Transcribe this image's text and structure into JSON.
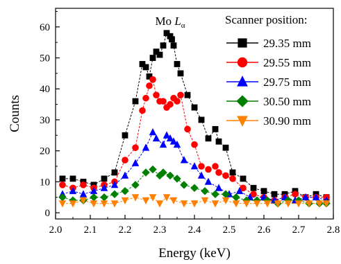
{
  "chart_data": {
    "type": "scatter",
    "xlabel": "Energy (keV)",
    "ylabel": "Counts",
    "xlim": [
      2.0,
      2.8
    ],
    "ylim": [
      -2,
      66
    ],
    "x_ticks": [
      2.0,
      2.1,
      2.2,
      2.3,
      2.4,
      2.5,
      2.6,
      2.7,
      2.8
    ],
    "x_tick_labels": [
      "2.0",
      "2.1",
      "2.2",
      "2.3",
      "2.4",
      "2.5",
      "2.6",
      "2.7",
      "2.8"
    ],
    "y_ticks": [
      0,
      10,
      20,
      30,
      40,
      50,
      60
    ],
    "y_tick_labels": [
      "0",
      "10",
      "20",
      "30",
      "40",
      "50",
      "60"
    ],
    "grid": false,
    "legend": {
      "title": "Scanner position:",
      "placement": "top-right"
    },
    "annotation": {
      "text": "Mo ",
      "symbol": "L",
      "subscript": "α",
      "x": 2.33
    },
    "series": [
      {
        "name": "29.35 mm",
        "marker": "square",
        "color": "#000000",
        "fill": "#000000",
        "x": [
          2.02,
          2.05,
          2.08,
          2.11,
          2.14,
          2.17,
          2.2,
          2.23,
          2.25,
          2.26,
          2.27,
          2.28,
          2.29,
          2.3,
          2.31,
          2.32,
          2.33,
          2.335,
          2.34,
          2.35,
          2.36,
          2.38,
          2.4,
          2.42,
          2.44,
          2.46,
          2.47,
          2.49,
          2.51,
          2.54,
          2.57,
          2.6,
          2.63,
          2.66,
          2.69,
          2.72,
          2.75,
          2.78
        ],
        "y": [
          11,
          11,
          10,
          9,
          11,
          13,
          25,
          36,
          48,
          47,
          44,
          50,
          52,
          51,
          54,
          58,
          57,
          56,
          54,
          48,
          45,
          38,
          34,
          30,
          24,
          27,
          23,
          21,
          13,
          11,
          8,
          7,
          6,
          6,
          7,
          5,
          6,
          5
        ]
      },
      {
        "name": "29.55 mm",
        "marker": "circle",
        "color": "#ff0000",
        "fill": "#ff0000",
        "x": [
          2.02,
          2.05,
          2.08,
          2.11,
          2.14,
          2.17,
          2.2,
          2.23,
          2.25,
          2.26,
          2.27,
          2.28,
          2.29,
          2.3,
          2.31,
          2.32,
          2.33,
          2.34,
          2.35,
          2.36,
          2.38,
          2.4,
          2.42,
          2.44,
          2.46,
          2.47,
          2.49,
          2.51,
          2.54,
          2.57,
          2.6,
          2.63,
          2.66,
          2.69,
          2.72,
          2.75,
          2.78
        ],
        "y": [
          9,
          8,
          9,
          8,
          9,
          10,
          17,
          21,
          33,
          37,
          41,
          43,
          38,
          36,
          36,
          34,
          35,
          37,
          36,
          38,
          27,
          22,
          15,
          14,
          15,
          13,
          12,
          11,
          8,
          6,
          5,
          4,
          5,
          6,
          5,
          5,
          5
        ]
      },
      {
        "name": "29.75 mm",
        "marker": "triangle-up",
        "color": "#0000ff",
        "fill": "#0000ff",
        "x": [
          2.02,
          2.05,
          2.08,
          2.11,
          2.14,
          2.17,
          2.2,
          2.23,
          2.26,
          2.28,
          2.29,
          2.31,
          2.32,
          2.33,
          2.34,
          2.35,
          2.37,
          2.4,
          2.42,
          2.44,
          2.47,
          2.5,
          2.53,
          2.56,
          2.6,
          2.63,
          2.66,
          2.69,
          2.72,
          2.75,
          2.78
        ],
        "y": [
          6,
          7,
          6,
          7,
          8,
          9,
          12,
          16,
          21,
          26,
          24,
          22,
          25,
          24,
          23,
          22,
          17,
          15,
          12,
          10,
          8,
          6,
          7,
          5,
          5,
          4,
          5,
          4,
          5,
          5,
          4
        ]
      },
      {
        "name": "30.50 mm",
        "marker": "diamond",
        "color": "#008000",
        "fill": "#008000",
        "x": [
          2.02,
          2.05,
          2.08,
          2.11,
          2.14,
          2.17,
          2.2,
          2.23,
          2.26,
          2.28,
          2.3,
          2.31,
          2.33,
          2.35,
          2.37,
          2.4,
          2.43,
          2.46,
          2.49,
          2.52,
          2.55,
          2.58,
          2.61,
          2.64,
          2.67,
          2.7,
          2.73,
          2.76,
          2.78
        ],
        "y": [
          5,
          4,
          4,
          5,
          5,
          6,
          7,
          9,
          13,
          14,
          12,
          13,
          12,
          11,
          9,
          8,
          7,
          6,
          6,
          5,
          4,
          4,
          4,
          3,
          4,
          4,
          3,
          3,
          3
        ]
      },
      {
        "name": "30.90 mm",
        "marker": "triangle-down",
        "color": "#ff8000",
        "fill": "#ff8000",
        "x": [
          2.02,
          2.05,
          2.08,
          2.11,
          2.14,
          2.17,
          2.2,
          2.23,
          2.26,
          2.28,
          2.3,
          2.32,
          2.34,
          2.37,
          2.4,
          2.43,
          2.46,
          2.49,
          2.52,
          2.55,
          2.58,
          2.61,
          2.64,
          2.67,
          2.7,
          2.73,
          2.76,
          2.78
        ],
        "y": [
          3,
          3,
          4,
          3,
          3,
          3,
          4,
          5,
          4,
          5,
          3,
          5,
          4,
          3,
          3,
          4,
          3,
          4,
          3,
          3,
          3,
          3,
          3,
          3,
          3,
          3,
          3,
          3
        ]
      }
    ]
  }
}
